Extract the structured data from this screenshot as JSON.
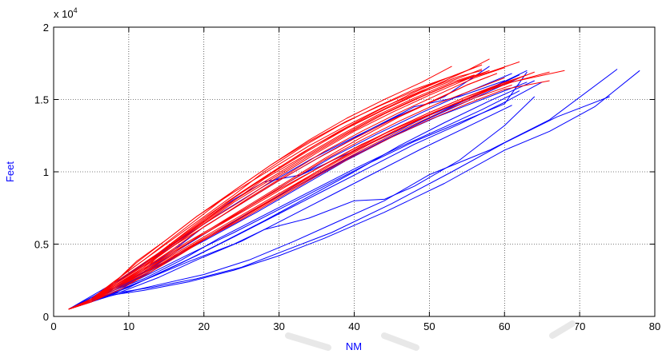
{
  "chart_data": {
    "type": "line",
    "title": "",
    "xlabel": "NM",
    "ylabel": "Feet",
    "xlim": [
      0,
      80
    ],
    "ylim": [
      0,
      20000
    ],
    "x_ticks": [
      0,
      10,
      20,
      30,
      40,
      50,
      60,
      70,
      80
    ],
    "y_ticks": [
      0,
      5000,
      10000,
      15000,
      20000
    ],
    "x_tick_labels": [
      "0",
      "10",
      "20",
      "30",
      "40",
      "50",
      "60",
      "70",
      "80"
    ],
    "y_tick_labels": [
      "0",
      "0.5",
      "1",
      "1.5",
      "2"
    ],
    "y_multiplier": "x 10",
    "y_multiplier_exponent": "4",
    "grid": true,
    "label_color": "#0000ff",
    "series_colors": {
      "blue": "#0000ff",
      "red": "#ff0000"
    },
    "series": [
      {
        "color": "blue",
        "x": [
          2,
          5,
          8,
          12,
          18,
          24,
          30,
          36,
          44,
          52,
          60,
          66,
          72,
          78
        ],
        "y": [
          500,
          1000,
          1500,
          1800,
          2400,
          3200,
          4200,
          5400,
          7200,
          9200,
          11500,
          12800,
          14500,
          17000
        ]
      },
      {
        "color": "blue",
        "x": [
          2,
          5,
          8,
          13,
          19,
          25,
          31,
          37,
          45,
          53,
          60,
          67,
          74
        ],
        "y": [
          500,
          1000,
          1600,
          2000,
          2600,
          3400,
          4600,
          5800,
          7800,
          10000,
          12000,
          13800,
          15200
        ]
      },
      {
        "color": "blue",
        "x": [
          2,
          5,
          9,
          14,
          20,
          26,
          32,
          38,
          44,
          50,
          58,
          66,
          75
        ],
        "y": [
          500,
          1100,
          1600,
          2200,
          2900,
          3900,
          5200,
          6600,
          8000,
          9800,
          11500,
          13600,
          17100
        ]
      },
      {
        "color": "blue",
        "x": [
          2,
          5,
          8,
          12,
          18,
          24,
          28,
          34,
          40,
          44,
          48,
          54,
          60,
          64
        ],
        "y": [
          500,
          1000,
          1700,
          2500,
          3800,
          5000,
          6000,
          6800,
          8000,
          8100,
          9000,
          10800,
          13200,
          15200
        ]
      },
      {
        "color": "blue",
        "x": [
          2,
          5,
          8,
          12,
          17,
          22,
          28,
          34,
          40,
          46,
          52,
          58,
          64
        ],
        "y": [
          500,
          1100,
          1600,
          2500,
          3700,
          5000,
          6600,
          8300,
          10000,
          11800,
          13400,
          14900,
          16300
        ]
      },
      {
        "color": "blue",
        "x": [
          2,
          5,
          8,
          11,
          16,
          21,
          27,
          33,
          39,
          45,
          51,
          57,
          63
        ],
        "y": [
          500,
          1200,
          1900,
          2800,
          4100,
          5500,
          7200,
          9000,
          10800,
          12400,
          14000,
          15500,
          17000
        ]
      },
      {
        "color": "blue",
        "x": [
          2,
          5,
          8,
          12,
          16,
          21,
          26,
          31,
          37,
          43,
          49,
          55,
          61
        ],
        "y": [
          500,
          1200,
          2000,
          3000,
          4400,
          6000,
          7600,
          9200,
          11000,
          12600,
          14100,
          15500,
          16800
        ]
      },
      {
        "color": "blue",
        "x": [
          2,
          5,
          9,
          13,
          18,
          23,
          28,
          34,
          40,
          46,
          52,
          58
        ],
        "y": [
          500,
          1400,
          2600,
          4000,
          5700,
          7400,
          9000,
          10800,
          12400,
          13900,
          15200,
          17300
        ]
      },
      {
        "color": "blue",
        "x": [
          2,
          5,
          8,
          12,
          16,
          20,
          24,
          28,
          33,
          38,
          44,
          50,
          56,
          62
        ],
        "y": [
          500,
          1300,
          2200,
          3500,
          5000,
          6600,
          8100,
          9300,
          9800,
          11000,
          12400,
          13900,
          15200,
          16700
        ]
      },
      {
        "color": "blue",
        "x": [
          2,
          5,
          8,
          12,
          16,
          20,
          25,
          30,
          36,
          42,
          48,
          54,
          60
        ],
        "y": [
          500,
          1200,
          2000,
          3200,
          4600,
          6200,
          7800,
          9400,
          11200,
          12900,
          14500,
          15200,
          16300
        ]
      },
      {
        "color": "blue",
        "x": [
          2,
          6,
          10,
          14,
          19,
          24,
          30,
          36,
          42,
          48,
          54,
          60,
          65
        ],
        "y": [
          500,
          1300,
          2000,
          3000,
          4200,
          5500,
          7100,
          8700,
          10300,
          11900,
          13300,
          14800,
          16200
        ]
      },
      {
        "color": "blue",
        "x": [
          2,
          5,
          8,
          12,
          17,
          22,
          28,
          34,
          40,
          46,
          52,
          57,
          62
        ],
        "y": [
          500,
          1200,
          1800,
          2600,
          3900,
          5400,
          7000,
          8600,
          10200,
          11700,
          13100,
          14300,
          15600
        ]
      },
      {
        "color": "blue",
        "x": [
          2,
          5,
          9,
          14,
          19,
          25,
          31,
          37,
          43,
          49,
          55,
          61
        ],
        "y": [
          500,
          1100,
          1700,
          2700,
          3900,
          5200,
          6800,
          8400,
          10000,
          11600,
          13100,
          14600
        ]
      },
      {
        "color": "blue",
        "x": [
          2,
          5,
          9,
          13,
          18,
          24,
          30,
          36,
          42,
          48,
          54,
          60,
          63
        ],
        "y": [
          500,
          1200,
          2000,
          3000,
          4300,
          5800,
          7400,
          9000,
          10600,
          12100,
          13400,
          14700,
          16900
        ]
      },
      {
        "color": "blue",
        "x": [
          2,
          5,
          8,
          12,
          16,
          21,
          26,
          32,
          38,
          44,
          50,
          56,
          62
        ],
        "y": [
          500,
          1100,
          1900,
          2900,
          4100,
          5600,
          7200,
          8900,
          10600,
          12200,
          13700,
          15100,
          16500
        ]
      },
      {
        "color": "blue",
        "x": [
          2,
          5,
          9,
          13,
          17,
          22,
          27,
          33,
          39,
          45,
          51,
          57,
          63
        ],
        "y": [
          500,
          1300,
          2100,
          3100,
          4400,
          5900,
          7500,
          9200,
          10900,
          12400,
          13800,
          15000,
          16200
        ]
      },
      {
        "color": "red",
        "x": [
          2,
          5,
          8,
          12,
          16,
          20,
          25,
          30,
          35,
          40,
          45,
          50,
          55,
          58
        ],
        "y": [
          500,
          1100,
          2200,
          3600,
          5200,
          6800,
          8600,
          10300,
          11900,
          13300,
          14600,
          15800,
          17000,
          17800
        ]
      },
      {
        "color": "red",
        "x": [
          2,
          5,
          8,
          11,
          15,
          19,
          24,
          29,
          34,
          39,
          44,
          49,
          54,
          57
        ],
        "y": [
          500,
          1200,
          2300,
          3700,
          5300,
          6900,
          8700,
          10500,
          12100,
          13500,
          14700,
          15800,
          16800,
          17400
        ]
      },
      {
        "color": "red",
        "x": [
          2,
          5,
          8,
          12,
          16,
          21,
          26,
          31,
          36,
          41,
          46,
          51,
          56,
          60
        ],
        "y": [
          500,
          1100,
          2100,
          3400,
          4900,
          6500,
          8200,
          9800,
          11400,
          12800,
          14100,
          15300,
          16500,
          17200
        ]
      },
      {
        "color": "red",
        "x": [
          2,
          5,
          8,
          12,
          16,
          20,
          24,
          29,
          34,
          39,
          44,
          49,
          53
        ],
        "y": [
          500,
          1200,
          2400,
          3900,
          5500,
          7100,
          8700,
          10500,
          12200,
          13700,
          15000,
          16200,
          17300
        ]
      },
      {
        "color": "red",
        "x": [
          2,
          5,
          8,
          12,
          15,
          19,
          23,
          28,
          33,
          38,
          43,
          48,
          53,
          58,
          62
        ],
        "y": [
          500,
          1000,
          2000,
          3200,
          4700,
          6200,
          7700,
          9300,
          10900,
          12400,
          13800,
          15000,
          16100,
          16900,
          17600
        ]
      },
      {
        "color": "red",
        "x": [
          2,
          5,
          8,
          12,
          16,
          20,
          25,
          30,
          35,
          40,
          45,
          50,
          55,
          59
        ],
        "y": [
          500,
          1100,
          2100,
          3300,
          4700,
          6200,
          7800,
          9400,
          10900,
          12300,
          13600,
          14800,
          16000,
          16800
        ]
      },
      {
        "color": "red",
        "x": [
          2,
          5,
          8,
          12,
          16,
          21,
          26,
          31,
          36,
          41,
          46,
          51,
          56,
          61,
          66
        ],
        "y": [
          500,
          1000,
          1900,
          3000,
          4300,
          5800,
          7300,
          8800,
          10300,
          11700,
          13000,
          14200,
          15300,
          16200,
          16900
        ]
      },
      {
        "color": "red",
        "x": [
          2,
          5,
          8,
          11,
          15,
          19,
          24,
          29,
          34,
          39,
          44,
          49,
          54,
          57
        ],
        "y": [
          500,
          1200,
          2300,
          3800,
          5300,
          6900,
          8600,
          10200,
          11800,
          13200,
          14500,
          15600,
          16600,
          17000
        ]
      },
      {
        "color": "red",
        "x": [
          2,
          5,
          8,
          12,
          16,
          20,
          24,
          28,
          33,
          38,
          43,
          48,
          53,
          56
        ],
        "y": [
          500,
          1100,
          2200,
          3600,
          5000,
          6500,
          8000,
          9500,
          11000,
          12500,
          13900,
          15100,
          16200,
          16700
        ]
      },
      {
        "color": "red",
        "x": [
          2,
          5,
          8,
          12,
          16,
          21,
          26,
          31,
          36,
          41,
          46,
          51,
          56,
          60,
          64
        ],
        "y": [
          500,
          1100,
          2000,
          3100,
          4500,
          6000,
          7500,
          9000,
          10500,
          11900,
          13100,
          14200,
          15200,
          16100,
          16900
        ]
      },
      {
        "color": "red",
        "x": [
          2,
          5,
          8,
          12,
          16,
          20,
          25,
          30,
          35,
          40,
          45,
          50,
          55,
          58
        ],
        "y": [
          500,
          1200,
          2200,
          3500,
          4900,
          6400,
          8000,
          9700,
          11300,
          12800,
          14100,
          15300,
          16400,
          17000
        ]
      },
      {
        "color": "red",
        "x": [
          2,
          5,
          9,
          13,
          17,
          22,
          27,
          32,
          37,
          42,
          47,
          52,
          57,
          61
        ],
        "y": [
          500,
          1000,
          1900,
          3100,
          4500,
          6000,
          7500,
          9000,
          10500,
          11900,
          13200,
          14400,
          15500,
          16300
        ]
      },
      {
        "color": "red",
        "x": [
          2,
          5,
          8,
          12,
          16,
          20,
          25,
          30,
          35,
          40,
          45,
          50,
          55,
          60,
          68
        ],
        "y": [
          500,
          1100,
          2000,
          3100,
          4400,
          5800,
          7300,
          8800,
          10200,
          11600,
          12900,
          14100,
          15200,
          16100,
          17000
        ]
      },
      {
        "color": "red",
        "x": [
          2,
          5,
          8,
          12,
          16,
          20,
          24,
          29,
          34,
          39,
          44,
          49,
          54,
          57
        ],
        "y": [
          500,
          1200,
          2300,
          3700,
          5100,
          6600,
          8200,
          9900,
          11500,
          13000,
          14300,
          15500,
          16500,
          17100
        ]
      },
      {
        "color": "red",
        "x": [
          2,
          5,
          8,
          12,
          15,
          19,
          23,
          28,
          33,
          38,
          43,
          48,
          52
        ],
        "y": [
          500,
          1100,
          2100,
          3400,
          4800,
          6300,
          7900,
          9600,
          11300,
          12800,
          14200,
          15500,
          16400
        ]
      },
      {
        "color": "red",
        "x": [
          2,
          5,
          8,
          12,
          16,
          21,
          26,
          31,
          36,
          41,
          46,
          51,
          56,
          61
        ],
        "y": [
          500,
          1000,
          1900,
          2900,
          4200,
          5600,
          7100,
          8600,
          10100,
          11500,
          12800,
          14000,
          15100,
          16000
        ]
      },
      {
        "color": "red",
        "x": [
          2,
          5,
          8,
          12,
          16,
          20,
          25,
          30,
          35,
          40,
          45,
          50,
          55,
          60,
          66
        ],
        "y": [
          500,
          1100,
          2000,
          3000,
          4100,
          5300,
          6700,
          8200,
          9700,
          11100,
          12400,
          13600,
          14700,
          15700,
          16300
        ]
      },
      {
        "color": "red",
        "x": [
          2,
          5,
          8,
          12,
          16,
          20,
          24,
          28,
          33,
          38,
          43,
          48,
          53,
          56
        ],
        "y": [
          500,
          1200,
          2400,
          3900,
          5400,
          6900,
          8400,
          10000,
          11700,
          13200,
          14500,
          15700,
          16600,
          17200
        ]
      },
      {
        "color": "red",
        "x": [
          2,
          5,
          8,
          12,
          16,
          21,
          26,
          31,
          36,
          41,
          46,
          51,
          56,
          60
        ],
        "y": [
          500,
          1100,
          2100,
          3200,
          4500,
          6000,
          7600,
          9200,
          10800,
          12200,
          13500,
          14700,
          15700,
          16500
        ]
      },
      {
        "color": "red",
        "x": [
          2,
          5,
          8,
          12,
          16,
          20,
          25,
          30,
          35,
          40,
          45,
          50,
          55,
          59,
          63
        ],
        "y": [
          500,
          1000,
          1800,
          2800,
          4000,
          5300,
          6800,
          8400,
          10000,
          11500,
          12900,
          14100,
          15200,
          16000,
          16700
        ]
      },
      {
        "color": "red",
        "x": [
          2,
          5,
          8,
          12,
          16,
          20,
          24,
          29,
          34,
          39,
          44,
          49,
          54,
          58
        ],
        "y": [
          500,
          1200,
          2200,
          3500,
          4900,
          6400,
          7900,
          9500,
          11100,
          12600,
          14000,
          15200,
          16300,
          17000
        ]
      },
      {
        "color": "red",
        "x": [
          2,
          5,
          8,
          12,
          16,
          21,
          26,
          31,
          36,
          41,
          46,
          51,
          55,
          58
        ],
        "y": [
          500,
          1100,
          2100,
          3300,
          4600,
          6100,
          7700,
          9300,
          10900,
          12400,
          13800,
          15000,
          16000,
          16600
        ]
      }
    ]
  }
}
